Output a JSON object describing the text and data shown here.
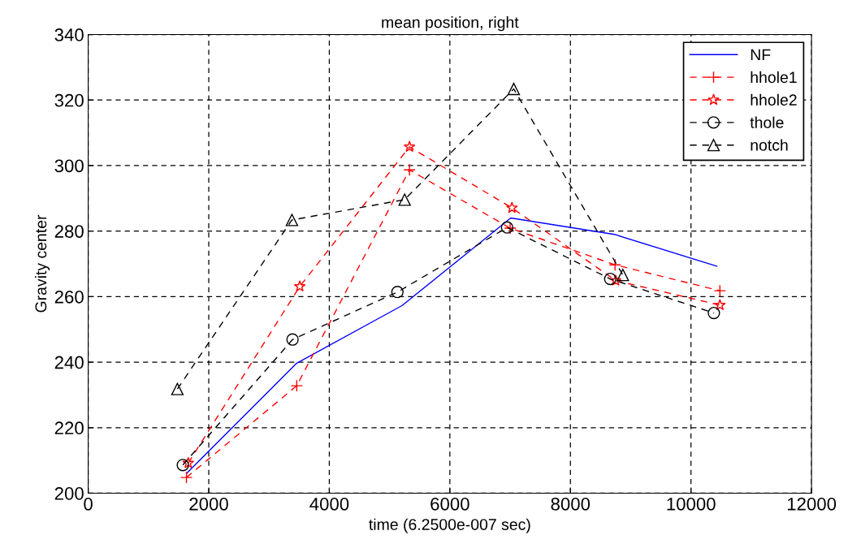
{
  "chart_data": {
    "type": "line",
    "title": "mean position, right",
    "xlabel": "time (6.2500e-007 sec)",
    "ylabel": "Gravity center",
    "xlim": [
      0,
      12000
    ],
    "xticks": [
      0,
      2000,
      4000,
      6000,
      8000,
      10000,
      12000
    ],
    "ylim": [
      200,
      340
    ],
    "yticks": [
      200,
      220,
      240,
      260,
      280,
      300,
      320,
      340
    ],
    "grid": true,
    "legend": "top right",
    "series": [
      {
        "name": "NF",
        "color": "#0000ff",
        "marker": "none",
        "line_style": "solid",
        "x": [
          1630,
          3460,
          5210,
          7010,
          8730,
          10430
        ],
        "values": [
          206,
          239.7,
          257.3,
          284,
          279,
          269.3
        ]
      },
      {
        "name": "hhole1",
        "color": "#ff0000",
        "marker": "cross",
        "line_style": "dashed",
        "x": [
          1630,
          3460,
          5330,
          7000,
          8740,
          10480
        ],
        "values": [
          204.8,
          232.8,
          298.7,
          280.9,
          269.7,
          261.8
        ]
      },
      {
        "name": "hhole2",
        "color": "#ff0000",
        "marker": "star",
        "line_style": "dashed",
        "x": [
          1660,
          3510,
          5330,
          7030,
          8750,
          10480
        ],
        "values": [
          209.2,
          263.1,
          305.7,
          287.1,
          264.9,
          257.4
        ]
      },
      {
        "name": "thole",
        "color": "#000000",
        "marker": "circle",
        "line_style": "dashed",
        "x": [
          1570,
          3390,
          5130,
          6950,
          8660,
          10380
        ],
        "values": [
          208.6,
          246.9,
          261.4,
          281.1,
          265.4,
          255
        ]
      },
      {
        "name": "notch",
        "color": "#000000",
        "marker": "triangle",
        "line_style": "dashed",
        "x": [
          1480,
          3380,
          5250,
          7060,
          8870
        ],
        "values": [
          231.8,
          283.4,
          289.6,
          323.4,
          266.6
        ]
      }
    ]
  }
}
